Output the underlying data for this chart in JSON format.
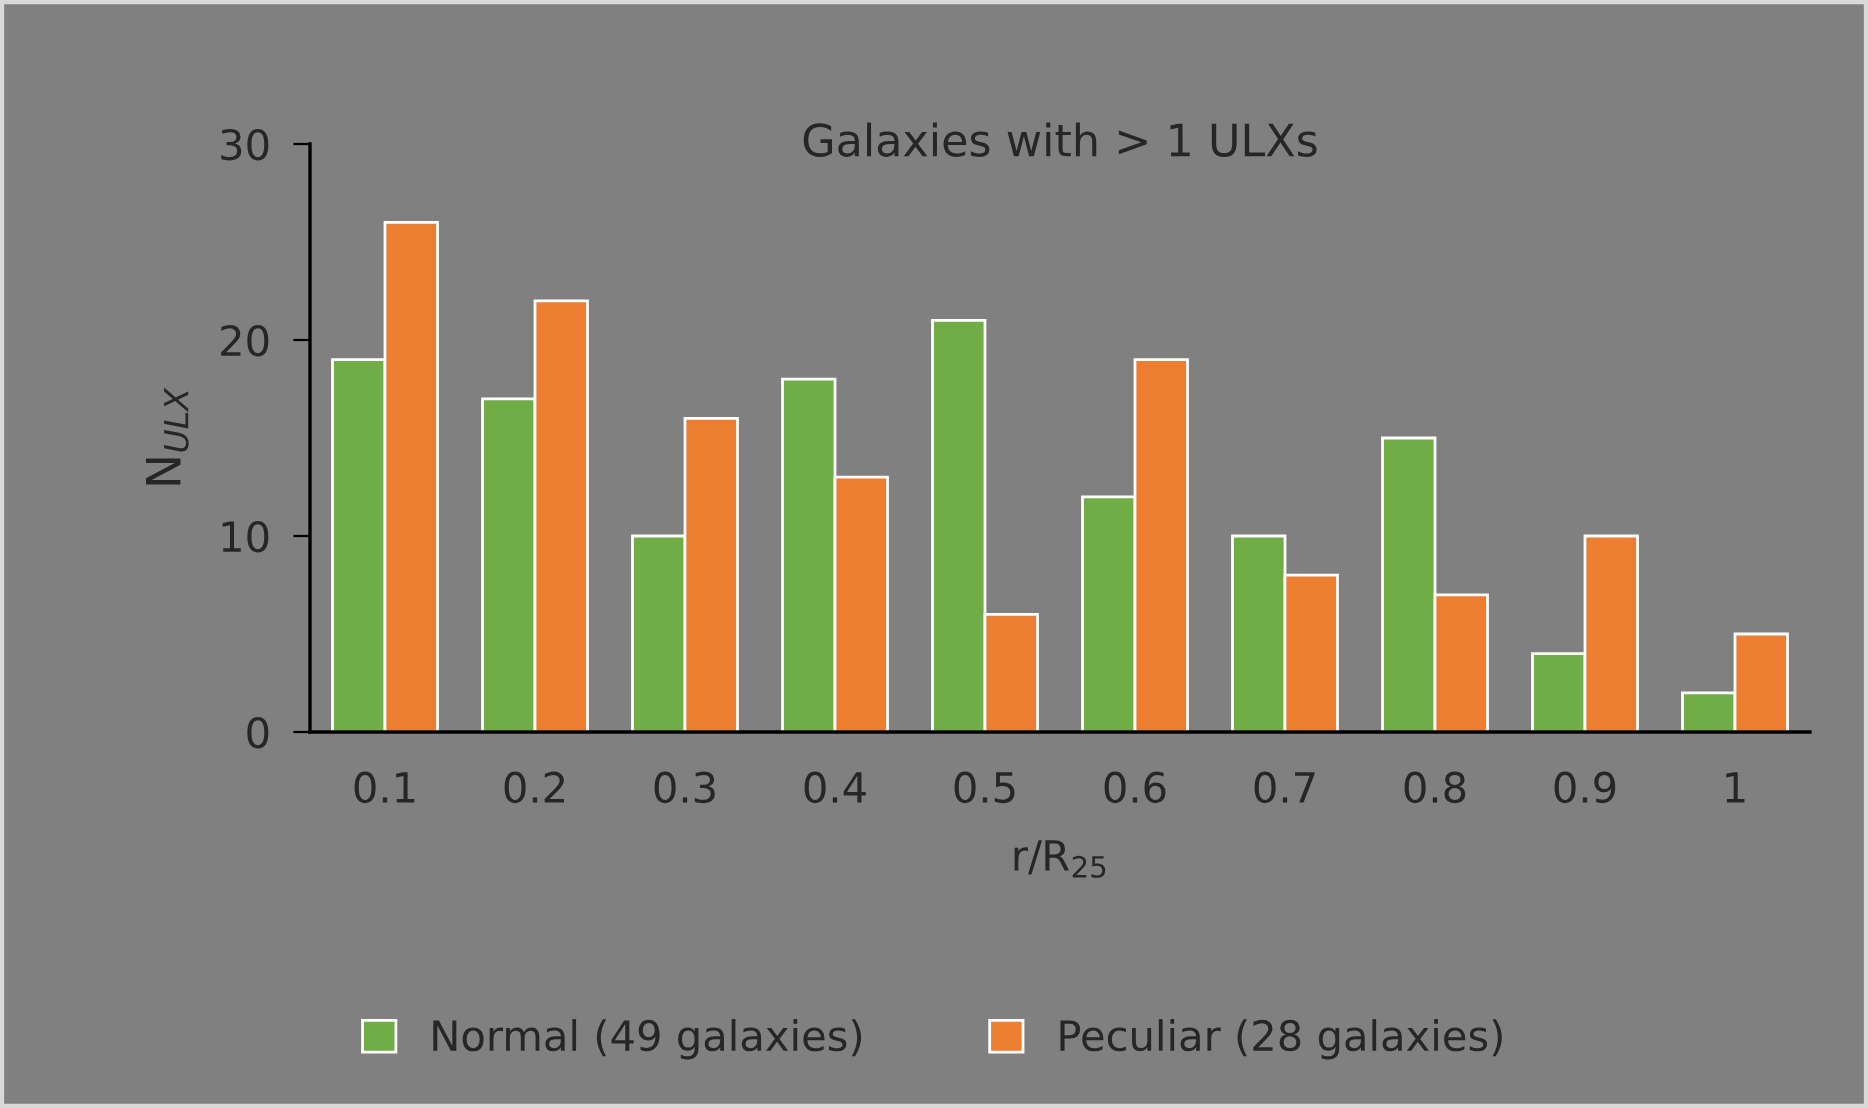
{
  "chart_data": {
    "type": "bar",
    "title": "Galaxies with > 1 ULXs",
    "xlabel": "r/R$_{25}$",
    "ylabel": "N$_{ULX}$",
    "categories": [
      "0.1",
      "0.2",
      "0.3",
      "0.4",
      "0.5",
      "0.6",
      "0.7",
      "0.8",
      "0.9",
      "1"
    ],
    "series": [
      {
        "name": "Normal (49 galaxies)",
        "color": "#70ad47",
        "values": [
          19,
          17,
          10,
          18,
          21,
          12,
          10,
          15,
          4,
          2
        ]
      },
      {
        "name": "Peculiar (28 galaxies)",
        "color": "#ed7d31",
        "values": [
          26,
          22,
          16,
          13,
          6,
          19,
          8,
          7,
          10,
          5
        ]
      }
    ],
    "ylim": [
      0,
      30
    ],
    "yticks": [
      0,
      10,
      20,
      30
    ],
    "grid": false,
    "legend": "bottom"
  }
}
